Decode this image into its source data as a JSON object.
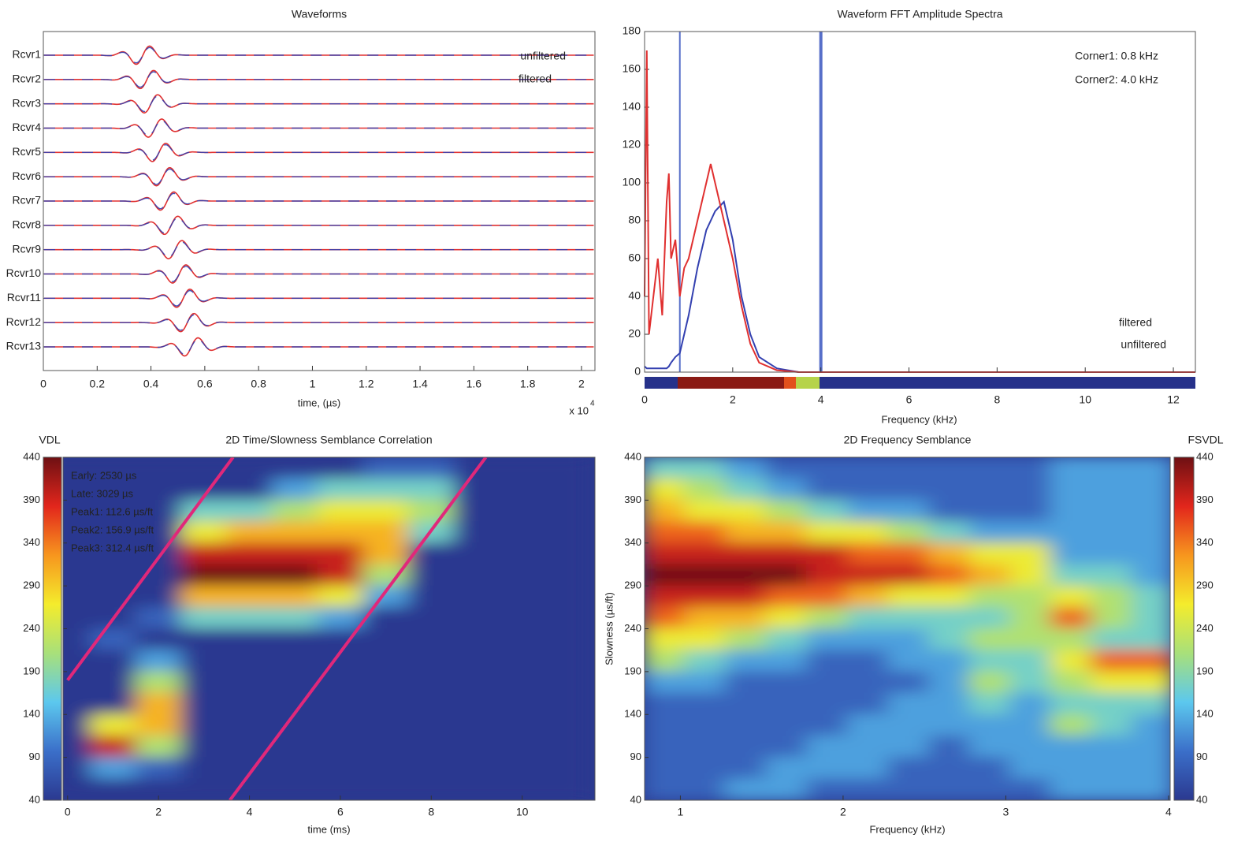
{
  "chart_data": [
    {
      "type": "waveform",
      "title": "Waveforms",
      "categories": [
        "Rcvr1",
        "Rcvr2",
        "Rcvr3",
        "Rcvr4",
        "Rcvr5",
        "Rcvr6",
        "Rcvr7",
        "Rcvr8",
        "Rcvr9",
        "Rcvr10",
        "Rcvr11",
        "Rcvr12",
        "Rcvr13"
      ],
      "series": [
        {
          "name": "unfiltered",
          "color": "#e03030",
          "values": [
            0.37,
            0.385,
            0.4,
            0.415,
            0.43,
            0.445,
            0.46,
            0.475,
            0.49,
            0.505,
            0.52,
            0.535,
            0.55
          ]
        },
        {
          "name": "filtered",
          "color": "#3340b0",
          "values": [
            0.37,
            0.385,
            0.4,
            0.415,
            0.43,
            0.445,
            0.46,
            0.475,
            0.49,
            0.505,
            0.52,
            0.535,
            0.55
          ]
        }
      ],
      "xlim": [
        0,
        2.05
      ],
      "xticks": [
        0,
        0.2,
        0.4,
        0.6,
        0.8,
        1,
        1.2,
        1.4,
        1.6,
        1.8,
        2
      ],
      "xlabel": "time, (µs)",
      "xscale_label": "x 10",
      "xscale_exponent": "4"
    },
    {
      "type": "line",
      "title": "Waveform FFT Amplitude Spectra",
      "x": [
        0,
        0.05,
        0.1,
        0.2,
        0.3,
        0.4,
        0.5,
        0.55,
        0.6,
        0.7,
        0.8,
        0.9,
        1.0,
        1.2,
        1.4,
        1.5,
        1.6,
        1.8,
        2.0,
        2.2,
        2.4,
        2.6,
        3.0,
        3.5,
        4.0,
        12.5
      ],
      "series": [
        {
          "name": "filtered",
          "color": "#3340b0",
          "values": [
            3,
            2,
            2,
            2,
            2,
            2,
            2,
            3,
            5,
            8,
            10,
            20,
            30,
            55,
            75,
            80,
            85,
            90,
            70,
            40,
            20,
            8,
            2,
            0,
            0,
            0
          ]
        },
        {
          "name": "unfiltered",
          "color": "#e03030",
          "values": [
            40,
            170,
            20,
            40,
            60,
            30,
            90,
            105,
            60,
            70,
            40,
            55,
            60,
            80,
            100,
            110,
            100,
            80,
            60,
            35,
            15,
            5,
            1,
            0,
            0,
            0
          ]
        }
      ],
      "xlim": [
        0,
        12.5
      ],
      "ylim": [
        0,
        180
      ],
      "xticks": [
        0,
        2,
        4,
        6,
        8,
        10,
        12
      ],
      "yticks": [
        0,
        20,
        40,
        60,
        80,
        100,
        120,
        140,
        160,
        180
      ],
      "xlabel": "Frequency (kHz)",
      "corners": [
        0.8,
        4.0
      ],
      "corner_color": "#3a56c0",
      "annotations": [
        "Corner1: 0.8 kHz",
        "Corner2: 4.0 kHz"
      ]
    },
    {
      "type": "heatmap",
      "title": "2D Time/Slowness Semblance Correlation",
      "colorbar_label": "VDL",
      "colorbar_side": "left",
      "colormap": [
        "#2b3990",
        "#3b6fc9",
        "#5cc8ee",
        "#a8e07a",
        "#f4ec2c",
        "#f7961e",
        "#e2261c",
        "#6e1013"
      ],
      "x": [
        0,
        1,
        2,
        3,
        4,
        5,
        6,
        7,
        8,
        9,
        10,
        11
      ],
      "y": [
        427.5,
        402.5,
        377.5,
        352.5,
        327.5,
        302.5,
        277.5,
        252.5,
        227.5,
        202.5,
        177.5,
        152.5,
        127.5,
        102.5,
        77.5,
        52.5
      ],
      "z": [
        [
          0,
          0,
          0,
          0,
          0,
          0,
          0,
          1,
          1,
          0,
          0,
          0
        ],
        [
          0,
          0,
          0,
          0,
          0,
          2,
          3,
          3,
          3,
          0,
          0,
          0
        ],
        [
          0,
          0,
          0,
          3,
          3,
          4,
          5,
          5,
          4,
          0,
          0,
          0
        ],
        [
          0,
          0,
          0,
          5,
          6,
          6,
          6,
          6,
          3,
          0,
          0,
          0
        ],
        [
          0,
          0,
          0,
          8,
          8,
          8,
          8,
          6,
          0,
          0,
          0,
          0
        ],
        [
          0,
          0,
          0,
          9,
          9,
          9,
          8,
          4,
          0,
          0,
          0,
          0
        ],
        [
          0,
          0,
          0,
          6,
          6,
          6,
          5,
          2,
          0,
          0,
          0,
          0
        ],
        [
          0,
          0,
          1,
          3,
          3,
          3,
          2,
          0,
          0,
          0,
          0,
          0
        ],
        [
          0,
          1,
          0,
          0,
          0,
          0,
          0,
          0,
          0,
          0,
          0,
          0
        ],
        [
          0,
          0,
          2,
          0,
          0,
          0,
          0,
          0,
          0,
          0,
          0,
          0
        ],
        [
          0,
          0,
          4,
          0,
          0,
          0,
          0,
          0,
          0,
          0,
          0,
          0
        ],
        [
          0,
          0,
          6,
          0,
          0,
          0,
          0,
          0,
          0,
          0,
          0,
          0
        ],
        [
          0,
          5,
          6,
          0,
          0,
          0,
          0,
          0,
          0,
          0,
          0,
          0
        ],
        [
          0,
          8,
          4,
          0,
          0,
          0,
          0,
          0,
          0,
          0,
          0,
          0
        ],
        [
          0,
          2,
          1,
          0,
          0,
          0,
          0,
          0,
          0,
          0,
          0,
          0
        ],
        [
          0,
          0,
          0,
          0,
          0,
          0,
          0,
          0,
          0,
          0,
          0,
          0
        ]
      ],
      "zlim": [
        0,
        9
      ],
      "xlim": [
        -0.1,
        11.6
      ],
      "ylim": [
        40,
        440
      ],
      "xticks": [
        0,
        2,
        4,
        6,
        8,
        10
      ],
      "yticks": [
        40,
        90,
        140,
        190,
        240,
        290,
        340,
        390,
        440
      ],
      "xlabel": "time (ms)",
      "annotations": [
        "Early: 2530 µs",
        "Late: 3029 µs",
        "Peak1: 112.6  µs/ft",
        "Peak2: 156.9  µs/ft",
        "Peak3: 312.4  µs/ft"
      ],
      "windows": [
        {
          "x": [
            0,
            3.64
          ],
          "y": [
            180,
            440
          ]
        },
        {
          "x": [
            3.57,
            9.2
          ],
          "y": [
            40,
            440
          ]
        }
      ],
      "window_color": "#e0287a"
    },
    {
      "type": "heatmap",
      "title": "2D Frequency Semblance",
      "colorbar_label": "FSVDL",
      "colorbar_side": "right",
      "colormap": [
        "#2b3990",
        "#3b6fc9",
        "#5cc8ee",
        "#a8e07a",
        "#f4ec2c",
        "#f7961e",
        "#e2261c",
        "#6e1013"
      ],
      "x": [
        0.9,
        1.15,
        1.4,
        1.65,
        1.9,
        2.15,
        2.4,
        2.65,
        2.9,
        3.15,
        3.4,
        3.65,
        3.9
      ],
      "y": [
        427.5,
        402.5,
        377.5,
        352.5,
        327.5,
        302.5,
        277.5,
        252.5,
        227.5,
        202.5,
        177.5,
        152.5,
        127.5,
        102.5,
        77.5,
        52.5
      ],
      "z": [
        [
          3,
          3,
          2,
          1,
          1,
          1,
          1,
          1,
          1,
          1,
          2,
          2,
          2
        ],
        [
          5,
          4,
          3,
          2,
          1,
          1,
          1,
          1,
          1,
          1,
          2,
          2,
          2
        ],
        [
          6,
          5,
          5,
          4,
          3,
          2,
          2,
          1,
          1,
          1,
          2,
          2,
          2
        ],
        [
          7,
          7,
          6,
          6,
          5,
          5,
          4,
          3,
          2,
          2,
          2,
          2,
          2
        ],
        [
          8,
          8,
          8,
          8,
          8,
          7,
          7,
          6,
          5,
          5,
          2,
          2,
          2
        ],
        [
          9,
          9,
          9,
          9,
          8,
          8,
          8,
          7,
          6,
          5,
          3,
          3,
          2
        ],
        [
          8,
          8,
          8,
          7,
          7,
          6,
          5,
          5,
          4,
          4,
          5,
          4,
          3
        ],
        [
          7,
          6,
          6,
          5,
          4,
          3,
          3,
          3,
          3,
          4,
          7,
          4,
          3
        ],
        [
          5,
          5,
          4,
          3,
          2,
          2,
          2,
          3,
          4,
          4,
          4,
          3,
          3
        ],
        [
          4,
          3,
          2,
          2,
          1,
          1,
          2,
          2,
          3,
          3,
          5,
          7,
          7
        ],
        [
          2,
          2,
          1,
          1,
          1,
          1,
          1,
          2,
          4,
          3,
          4,
          5,
          5
        ],
        [
          1,
          1,
          1,
          1,
          1,
          1,
          2,
          2,
          3,
          2,
          3,
          3,
          3
        ],
        [
          1,
          1,
          1,
          1,
          1,
          2,
          2,
          2,
          2,
          2,
          4,
          3,
          2
        ],
        [
          1,
          1,
          1,
          1,
          2,
          2,
          2,
          1,
          2,
          2,
          2,
          2,
          2
        ],
        [
          1,
          1,
          1,
          2,
          2,
          2,
          1,
          1,
          1,
          2,
          2,
          2,
          2
        ],
        [
          1,
          1,
          2,
          2,
          1,
          1,
          1,
          1,
          1,
          1,
          2,
          2,
          2
        ]
      ],
      "zlim": [
        0,
        9
      ],
      "xlim": [
        0.78,
        4.01
      ],
      "ylim": [
        40,
        440
      ],
      "xticks": [
        1,
        2,
        3,
        4
      ],
      "yticks": [
        40,
        90,
        140,
        190,
        240,
        290,
        340,
        390,
        440
      ],
      "xlabel": "Frequency (kHz)",
      "ylabel": "Slowness (µs/ft)"
    }
  ]
}
